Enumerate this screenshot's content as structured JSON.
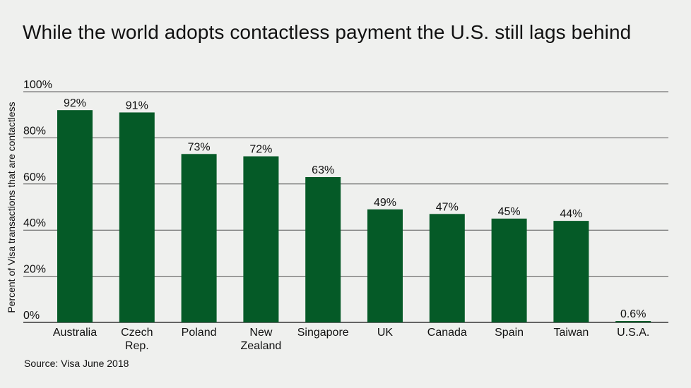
{
  "title": "While the world adopts contactless payment the U.S. still lags behind",
  "source": "Source: Visa June 2018",
  "colors": {
    "bar": "#055a27",
    "grid": "#555555",
    "axis": "#111111",
    "background": "#eff0ee"
  },
  "chart_data": {
    "type": "bar",
    "title": "While the world adopts contactless payment the U.S. still lags behind",
    "xlabel": "",
    "ylabel": "Percent of Visa transactions that are contactless",
    "ylim": [
      0,
      100
    ],
    "yticks": [
      0,
      20,
      40,
      60,
      80,
      100
    ],
    "ytick_labels": [
      "0%",
      "20%",
      "40%",
      "60%",
      "80%",
      "100%"
    ],
    "categories": [
      "Australia",
      "Czech Rep.",
      "Poland",
      "New Zealand",
      "Singapore",
      "UK",
      "Canada",
      "Spain",
      "Taiwan",
      "U.S.A."
    ],
    "category_lines": [
      [
        "Australia"
      ],
      [
        "Czech",
        "Rep."
      ],
      [
        "Poland"
      ],
      [
        "New",
        "Zealand"
      ],
      [
        "Singapore"
      ],
      [
        "UK"
      ],
      [
        "Canada"
      ],
      [
        "Spain"
      ],
      [
        "Taiwan"
      ],
      [
        "U.S.A."
      ]
    ],
    "values": [
      92,
      91,
      73,
      72,
      63,
      49,
      47,
      45,
      44,
      0.6
    ],
    "data_labels": [
      "92%",
      "91%",
      "73%",
      "72%",
      "63%",
      "49%",
      "47%",
      "45%",
      "44%",
      "0.6%"
    ],
    "grid": true,
    "legend": "none"
  }
}
